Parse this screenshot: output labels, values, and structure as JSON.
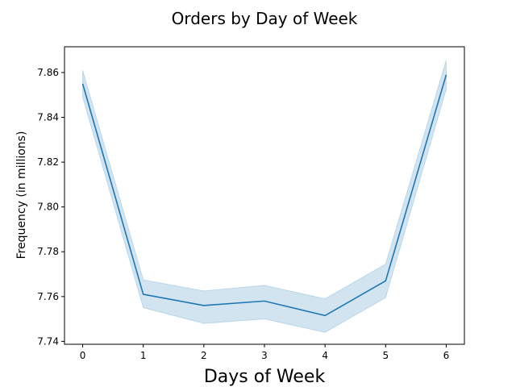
{
  "chart_data": {
    "type": "line",
    "title": "Orders by Day of Week",
    "xlabel": "Days of Week",
    "ylabel": "Frequency (in millions)",
    "x": [
      0,
      1,
      2,
      3,
      4,
      5,
      6
    ],
    "series": [
      {
        "values": [
          7.855,
          7.761,
          7.756,
          7.758,
          7.7515,
          7.767,
          7.859
        ],
        "ci_upper": [
          7.861,
          7.7675,
          7.7625,
          7.765,
          7.759,
          7.7745,
          7.8655
        ],
        "ci_lower": [
          7.849,
          7.755,
          7.748,
          7.75,
          7.744,
          7.7595,
          7.8525
        ],
        "color": "#1f77b4",
        "band_color": "#1f77b4"
      }
    ],
    "xticks": [
      "0",
      "1",
      "2",
      "3",
      "4",
      "5",
      "6"
    ],
    "yticks": [
      "7.74",
      "7.76",
      "7.78",
      "7.80",
      "7.82",
      "7.84",
      "7.86"
    ],
    "xlim": [
      -0.3,
      6.3
    ],
    "ylim": [
      7.7387,
      7.8715
    ],
    "grid": false,
    "legend": "none"
  }
}
